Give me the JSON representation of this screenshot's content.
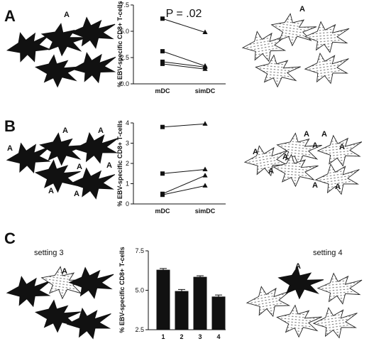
{
  "panels": {
    "A": "A",
    "B": "B",
    "C": "C"
  },
  "setting3": "setting 3",
  "setting4": "setting 4",
  "cell_label": "A",
  "colors": {
    "black": "#111111",
    "pattern_fill": "#ffffff",
    "bar": "#111111"
  },
  "chart_data": [
    {
      "type": "line",
      "panel": "A",
      "annotation": "P = .02",
      "categories": [
        "mDC",
        "simDC"
      ],
      "ylabel": "% EBV-specific CD8+ T-cells",
      "yticks": [
        "0.0",
        "2.5",
        "5.0",
        "7.5"
      ],
      "ylim": [
        0,
        7.5
      ],
      "series": [
        {
          "values": [
            6.2,
            4.9
          ]
        },
        {
          "values": [
            3.1,
            1.7
          ]
        },
        {
          "values": [
            2.1,
            1.6
          ]
        },
        {
          "values": [
            1.9,
            1.4
          ]
        }
      ]
    },
    {
      "type": "line",
      "panel": "B",
      "categories": [
        "mDC",
        "simDC"
      ],
      "ylabel": "% EBV-specific CD8+ T-cells",
      "yticks": [
        "0",
        "1",
        "2",
        "3",
        "4"
      ],
      "ylim": [
        0,
        4
      ],
      "series": [
        {
          "values": [
            3.8,
            3.95
          ]
        },
        {
          "values": [
            1.5,
            1.7
          ]
        },
        {
          "values": [
            0.5,
            1.4
          ]
        },
        {
          "values": [
            0.45,
            0.9
          ]
        }
      ]
    },
    {
      "type": "bar",
      "panel": "C",
      "categories": [
        "1",
        "2",
        "3",
        "4"
      ],
      "values": [
        6.3,
        4.95,
        5.85,
        4.6
      ],
      "errors": [
        0.08,
        0.1,
        0.07,
        0.1
      ],
      "ylabel": "% EBV-specific CD8+ T-cells",
      "yticks": [
        "2.5",
        "5.0",
        "7.5"
      ],
      "ylim": [
        2.5,
        7.5
      ]
    }
  ]
}
